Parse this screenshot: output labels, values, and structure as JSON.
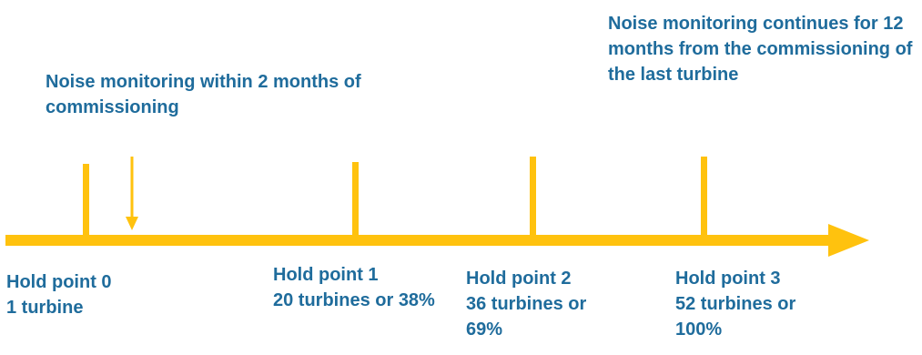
{
  "notes": {
    "initial": "Noise monitoring within 2 months of commissioning",
    "final": "Noise monitoring continues for 12 months from the commissioning of the last turbine"
  },
  "hold_points": [
    {
      "title": "Hold point 0",
      "detail": "1 turbine"
    },
    {
      "title": "Hold point 1",
      "detail": "20 turbines or 38%"
    },
    {
      "title": "Hold point 2",
      "detail": "36 turbines or 69%"
    },
    {
      "title": "Hold point 3",
      "detail": "52 turbines or 100%"
    }
  ],
  "colors": {
    "timeline": "#FFC20E",
    "text": "#1F6C9C"
  }
}
